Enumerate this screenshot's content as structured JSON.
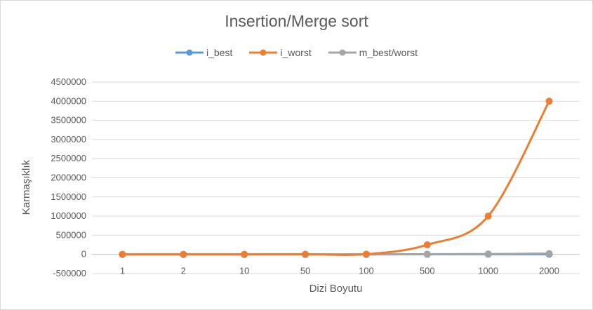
{
  "chart_data": {
    "type": "line",
    "title": "Insertion/Merge sort",
    "xlabel": "Dizi Boyutu",
    "ylabel": "Karmaşıklık",
    "categories": [
      "1",
      "2",
      "10",
      "50",
      "100",
      "500",
      "1000",
      "2000"
    ],
    "ylim": [
      -500000,
      4500000
    ],
    "yticks": [
      -500000,
      0,
      500000,
      1000000,
      1500000,
      2000000,
      2500000,
      3000000,
      3500000,
      4000000,
      4500000
    ],
    "grid": true,
    "legend_position": "top",
    "series": [
      {
        "name": "i_best",
        "color": "#5b9bd5",
        "values": [
          0,
          1,
          9,
          49,
          99,
          499,
          999,
          1999
        ]
      },
      {
        "name": "i_worst",
        "color": "#ed7d31",
        "values": [
          0,
          1,
          45,
          1225,
          4950,
          250000,
          1000000,
          4000000
        ]
      },
      {
        "name": "m_best/worst",
        "color": "#a5a5a5",
        "values": [
          0,
          2,
          34,
          282,
          664,
          4483,
          9966,
          21932
        ]
      }
    ]
  }
}
